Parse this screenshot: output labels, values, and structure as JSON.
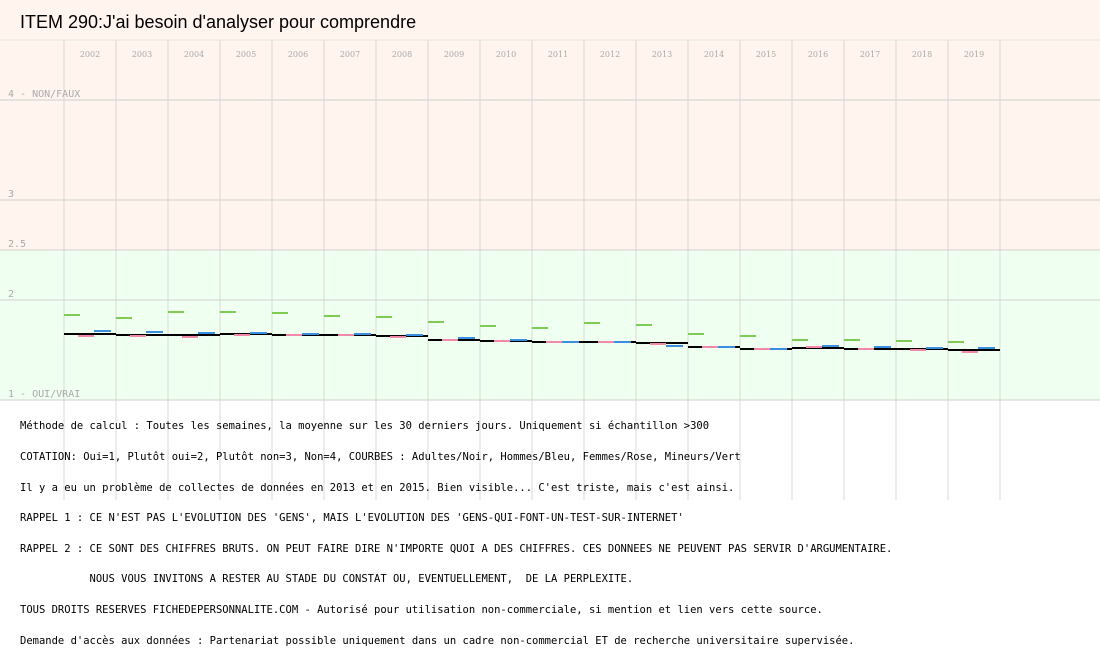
{
  "chart_data": {
    "type": "line",
    "title": "ITEM 290:J'ai besoin d'analyser pour comprendre",
    "categories": [
      "2002",
      "2003",
      "2004",
      "2005",
      "2006",
      "2007",
      "2008",
      "2009",
      "2010",
      "2011",
      "2012",
      "2013",
      "2014",
      "2015",
      "2016",
      "2017",
      "2018",
      "2019"
    ],
    "y_ticks": [
      {
        "value": 4,
        "label": "4 - NON/FAUX"
      },
      {
        "value": 3,
        "label": "3"
      },
      {
        "value": 2.5,
        "label": "2.5"
      },
      {
        "value": 2,
        "label": "2"
      },
      {
        "value": 1,
        "label": "1 - OUI/VRAI"
      }
    ],
    "ylim": [
      1,
      4.05
    ],
    "zones": [
      {
        "from": 2.5,
        "to": 4.05,
        "color": "#fff4ee"
      },
      {
        "from": 1,
        "to": 2.5,
        "color": "#effff0"
      }
    ],
    "series": [
      {
        "name": "Adultes",
        "color": "#000000",
        "values": [
          1.66,
          1.65,
          1.65,
          1.66,
          1.65,
          1.65,
          1.64,
          1.6,
          1.59,
          1.58,
          1.58,
          1.57,
          1.53,
          1.51,
          1.52,
          1.51,
          1.51,
          1.5
        ]
      },
      {
        "name": "Hommes",
        "color": "#3a8fe0",
        "values": [
          1.69,
          1.68,
          1.67,
          1.67,
          1.66,
          1.66,
          1.65,
          1.62,
          1.6,
          1.58,
          1.58,
          1.54,
          1.53,
          1.51,
          1.54,
          1.53,
          1.52,
          1.52
        ]
      },
      {
        "name": "Femmes",
        "color": "#f08aa8",
        "values": [
          1.64,
          1.64,
          1.63,
          1.65,
          1.65,
          1.65,
          1.63,
          1.6,
          1.59,
          1.58,
          1.58,
          1.56,
          1.53,
          1.51,
          1.53,
          1.51,
          1.5,
          1.48
        ]
      },
      {
        "name": "Mineurs",
        "color": "#7fcc55",
        "values": [
          1.85,
          1.82,
          1.88,
          1.88,
          1.87,
          1.84,
          1.83,
          1.78,
          1.74,
          1.72,
          1.77,
          1.75,
          1.66,
          1.64,
          1.6,
          1.6,
          1.59,
          1.58
        ]
      }
    ]
  },
  "notes": [
    "Méthode de calcul : Toutes les semaines, la moyenne sur les 30 derniers jours. Uniquement si échantillon >300",
    "COTATION: Oui=1, Plutôt oui=2, Plutôt non=3, Non=4, COURBES : Adultes/Noir, Hommes/Bleu, Femmes/Rose, Mineurs/Vert",
    "Il y a eu un problème de collectes de données en 2013 et en 2015. Bien visible... C'est triste, mais c'est ainsi.",
    "RAPPEL 1 : CE N'EST PAS L'EVOLUTION DES 'GENS', MAIS L'EVOLUTION DES 'GENS-QUI-FONT-UN-TEST-SUR-INTERNET'",
    "RAPPEL 2 : CE SONT DES CHIFFRES BRUTS. ON PEUT FAIRE DIRE N'IMPORTE QUOI A DES CHIFFRES. CES DONNEES NE PEUVENT PAS SERVIR D'ARGUMENTAIRE.",
    "           NOUS VOUS INVITONS A RESTER AU STADE DU CONSTAT OU, EVENTUELLEMENT,  DE LA PERPLEXITE.",
    "TOUS DROITS RESERVES FICHEDEPERSONNALITE.COM - Autorisé pour utilisation non-commerciale, si mention et lien vers cette source.",
    "Demande d'accès aux données : Partenariat possible uniquement dans un cadre non-commercial ET de recherche universitaire supervisée."
  ]
}
